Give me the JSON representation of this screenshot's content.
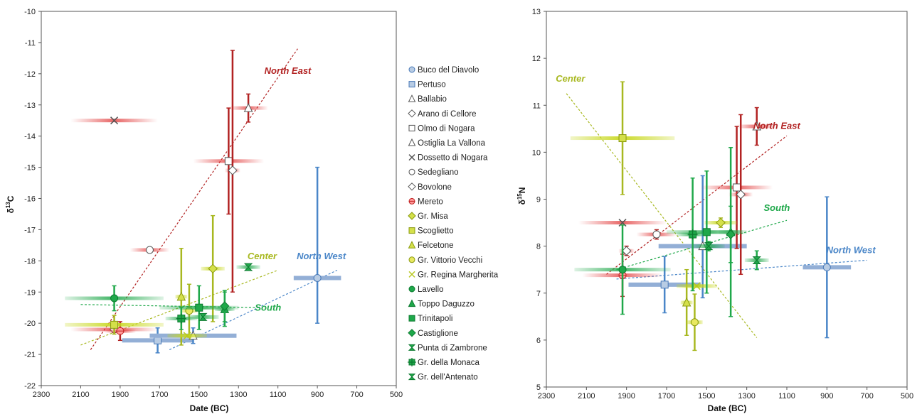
{
  "colors": {
    "north_east": "#b22222",
    "center": "#a8b820",
    "north_west": "#4a86c8",
    "south": "#1fa84a",
    "north_west_bar": "#93afd6",
    "frame": "#555555"
  },
  "legend": [
    {
      "label": "Buco del Diavolo",
      "symbol": "circle",
      "fill": "#b8cce4",
      "stroke": "#4a7ab8"
    },
    {
      "label": "Pertuso",
      "symbol": "square",
      "fill": "#b8cce4",
      "stroke": "#4a7ab8"
    },
    {
      "label": "Ballabio",
      "symbol": "triangle",
      "fill": "#ffffff",
      "stroke": "#555555"
    },
    {
      "label": "Arano di Cellore",
      "symbol": "diamond",
      "fill": "#ffffff",
      "stroke": "#555555"
    },
    {
      "label": "Olmo di Nogara",
      "symbol": "square",
      "fill": "#ffffff",
      "stroke": "#555555"
    },
    {
      "label": "Ostiglia La Vallona",
      "symbol": "triangle",
      "fill": "#ffffff",
      "stroke": "#555555"
    },
    {
      "label": "Dossetto di Nogara",
      "symbol": "x",
      "fill": "none",
      "stroke": "#555555"
    },
    {
      "label": "Sedegliano",
      "symbol": "circle",
      "fill": "#ffffff",
      "stroke": "#555555"
    },
    {
      "label": "Bovolone",
      "symbol": "diamond",
      "fill": "#ffffff",
      "stroke": "#555555"
    },
    {
      "label": "Mereto",
      "symbol": "circle-line",
      "fill": "#ff9999",
      "stroke": "#c02020"
    },
    {
      "label": "Gr. Misa",
      "symbol": "diamond",
      "fill": "#d4e04a",
      "stroke": "#8a9a10"
    },
    {
      "label": "Scoglietto",
      "symbol": "square",
      "fill": "#d4e04a",
      "stroke": "#8a9a10"
    },
    {
      "label": "Felcetone",
      "symbol": "triangle",
      "fill": "#d4e04a",
      "stroke": "#8a9a10"
    },
    {
      "label": "Gr. Vittorio Vecchi",
      "symbol": "circle",
      "fill": "#e8e860",
      "stroke": "#8a9a10"
    },
    {
      "label": "Gr. Regina Margherita",
      "symbol": "x",
      "fill": "none",
      "stroke": "#b8c820"
    },
    {
      "label": "Lavello",
      "symbol": "circle",
      "fill": "#1fa84a",
      "stroke": "#0d7a30"
    },
    {
      "label": "Toppo Daguzzo",
      "symbol": "triangle",
      "fill": "#1fa84a",
      "stroke": "#0d7a30"
    },
    {
      "label": "Trinitapoli",
      "symbol": "square",
      "fill": "#1fa84a",
      "stroke": "#0d7a30"
    },
    {
      "label": "Castiglione",
      "symbol": "diamond",
      "fill": "#1fa84a",
      "stroke": "#0d7a30"
    },
    {
      "label": "Punta di Zambrone",
      "symbol": "bowtie",
      "fill": "#1fa84a",
      "stroke": "#0d7a30"
    },
    {
      "label": "Gr. della Monaca",
      "symbol": "square-cross",
      "fill": "#1fa84a",
      "stroke": "#0d7a30"
    },
    {
      "label": "Gr. dell'Antenato",
      "symbol": "bowtie",
      "fill": "#1fa84a",
      "stroke": "#0d7a30"
    }
  ],
  "chart_data": [
    {
      "type": "scatter",
      "xlabel": "Date (BC)",
      "ylabel": "δ13C",
      "ylabel_main": "δ",
      "ylabel_sup": "13",
      "ylabel_tail": "C",
      "xlim": [
        2300,
        500
      ],
      "ylim": [
        -22,
        -10
      ],
      "x_reversed": true,
      "xticks": [
        "2300",
        "2100",
        "1900",
        "1700",
        "1500",
        "1300",
        "1100",
        "900",
        "700",
        "500"
      ],
      "yticks": [
        "-10",
        "-11",
        "-12",
        "-13",
        "-14",
        "-15",
        "-16",
        "-17",
        "-18",
        "-19",
        "-20",
        "-21",
        "-22"
      ],
      "regions": [
        {
          "name": "North East",
          "color_key": "north_east",
          "line": [
            [
              2050,
              -20.85
            ],
            [
              1000,
              -11.2
            ]
          ],
          "label_at": [
            1050,
            -12.0
          ]
        },
        {
          "name": "Center",
          "color_key": "center",
          "line": [
            [
              2100,
              -20.7
            ],
            [
              1100,
              -18.3
            ]
          ],
          "label_at": [
            1180,
            -17.95
          ]
        },
        {
          "name": "North West",
          "color_key": "north_west",
          "line": [
            [
              1650,
              -20.85
            ],
            [
              800,
              -18.3
            ]
          ],
          "label_at": [
            880,
            -17.95
          ]
        },
        {
          "name": "South",
          "color_key": "south",
          "line": [
            [
              2100,
              -19.4
            ],
            [
              1200,
              -19.5
            ]
          ],
          "label_at": [
            1150,
            -19.6
          ]
        }
      ],
      "points": [
        {
          "site": "Buco del Diavolo",
          "x": 900,
          "y": -18.55,
          "xerr": 120,
          "yerr_low": 1.45,
          "yerr_high": 3.55,
          "color_key": "north_west"
        },
        {
          "site": "Pertuso",
          "x": 1710,
          "y": -20.55,
          "xerr": 180,
          "yerr": 0.4,
          "color_key": "north_west"
        },
        {
          "site": "Ballabio",
          "x": 1530,
          "y": -20.4,
          "xerr": 220,
          "yerr": 0.25,
          "color_key": "north_west"
        },
        {
          "site": "Dossetto di Nogara",
          "x": 1930,
          "y": -13.5,
          "xerr": 220,
          "yerr": 0,
          "color_key": "north_east"
        },
        {
          "site": "Olmo di Nogara",
          "x": 1350,
          "y": -14.8,
          "xerr": 180,
          "yerr": 1.7,
          "color_key": "north_east"
        },
        {
          "site": "Arano di Cellore",
          "x": 1330,
          "y": -15.1,
          "xerr": 40,
          "yerr_low": 3.9,
          "yerr_high": 3.85,
          "color_key": "north_east"
        },
        {
          "site": "Ostiglia La Vallona",
          "x": 1250,
          "y": -13.1,
          "xerr": 100,
          "yerr": 0.45,
          "color_key": "north_east"
        },
        {
          "site": "Sedegliano",
          "x": 1750,
          "y": -17.65,
          "xerr": 100,
          "yerr": 0,
          "color_key": "north_east"
        },
        {
          "site": "Bovolone",
          "x": 1930,
          "y": -20.2,
          "xerr": 220,
          "yerr": 0.1,
          "color_key": "north_east"
        },
        {
          "site": "Mereto",
          "x": 1900,
          "y": -20.25,
          "xerr": 80,
          "yerr": 0.3,
          "color_key": "north_east"
        },
        {
          "site": "Gr. Misa",
          "x": 1430,
          "y": -18.25,
          "xerr": 60,
          "yerr": 1.7,
          "color_key": "center"
        },
        {
          "site": "Scoglietto",
          "x": 1930,
          "y": -20.05,
          "xerr": 250,
          "yerr": 0.3,
          "color_key": "center"
        },
        {
          "site": "Felcetone",
          "x": 1590,
          "y": -19.15,
          "xerr": 30,
          "yerr": 1.55,
          "color_key": "center"
        },
        {
          "site": "Gr. Vittorio Vecchi",
          "x": 1550,
          "y": -19.6,
          "xerr": 40,
          "yerr": 0.85,
          "color_key": "center"
        },
        {
          "site": "Gr. Regina Margherita",
          "x": 1560,
          "y": -20.4,
          "xerr": 100,
          "yerr": 0,
          "color_key": "center"
        },
        {
          "site": "Lavello",
          "x": 1930,
          "y": -19.2,
          "xerr": 250,
          "yerr": 0.4,
          "color_key": "south"
        },
        {
          "site": "Toppo Daguzzo",
          "x": 1370,
          "y": -19.55,
          "xerr": 50,
          "yerr": 0.55,
          "color_key": "south"
        },
        {
          "site": "Trinitapoli",
          "x": 1500,
          "y": -19.5,
          "xerr": 200,
          "yerr": 0.7,
          "color_key": "south"
        },
        {
          "site": "Castiglione",
          "x": 1370,
          "y": -19.45,
          "xerr": 0,
          "yerr": 0.5,
          "color_key": "south"
        },
        {
          "site": "Punta di Zambrone",
          "x": 1250,
          "y": -18.2,
          "xerr": 60,
          "yerr": 0,
          "color_key": "south"
        },
        {
          "site": "Gr. della Monaca",
          "x": 1590,
          "y": -19.85,
          "xerr": 80,
          "yerr": 0.35,
          "color_key": "south"
        },
        {
          "site": "Gr. dell'Antenato",
          "x": 1480,
          "y": -19.8,
          "xerr": 80,
          "yerr": 0.1,
          "color_key": "south"
        }
      ]
    },
    {
      "type": "scatter",
      "xlabel": "Date (BC)",
      "ylabel": "δ15N",
      "ylabel_main": "δ",
      "ylabel_sup": "15",
      "ylabel_tail": "N",
      "xlim": [
        2300,
        500
      ],
      "ylim": [
        5,
        13
      ],
      "x_reversed": true,
      "xticks": [
        "2300",
        "2100",
        "1900",
        "1700",
        "1500",
        "1300",
        "1100",
        "900",
        "700",
        "500"
      ],
      "yticks": [
        "5",
        "6",
        "7",
        "8",
        "9",
        "10",
        "11",
        "12",
        "13"
      ],
      "regions": [
        {
          "name": "North East",
          "color_key": "north_east",
          "line": [
            [
              2000,
              7.4
            ],
            [
              1100,
              10.35
            ]
          ],
          "label_at": [
            1150,
            10.5
          ]
        },
        {
          "name": "Center",
          "color_key": "center",
          "line": [
            [
              2200,
              11.25
            ],
            [
              1250,
              6.05
            ]
          ],
          "label_at": [
            2180,
            11.5
          ]
        },
        {
          "name": "North West",
          "color_key": "north_west",
          "line": [
            [
              1950,
              7.3
            ],
            [
              700,
              7.7
            ]
          ],
          "label_at": [
            780,
            7.85
          ]
        },
        {
          "name": "South",
          "color_key": "south",
          "line": [
            [
              1950,
              7.5
            ],
            [
              1100,
              8.55
            ]
          ],
          "label_at": [
            1150,
            8.75
          ]
        }
      ],
      "points": [
        {
          "site": "Buco del Diavolo",
          "x": 900,
          "y": 7.55,
          "xerr": 120,
          "yerr": 1.5,
          "color_key": "north_west"
        },
        {
          "site": "Pertuso",
          "x": 1710,
          "y": 7.18,
          "xerr": 180,
          "yerr": 0.6,
          "color_key": "north_west"
        },
        {
          "site": "Ballabio",
          "x": 1520,
          "y": 8.0,
          "xerr": 220,
          "yerr_low": 1.1,
          "yerr_high": 1.5,
          "color_key": "north_west"
        },
        {
          "site": "Dossetto di Nogara",
          "x": 1920,
          "y": 8.5,
          "xerr": 220,
          "yerr": 0,
          "color_key": "north_east"
        },
        {
          "site": "Olmo di Nogara",
          "x": 1350,
          "y": 9.25,
          "xerr": 180,
          "yerr": 1.3,
          "color_key": "north_east"
        },
        {
          "site": "Arano di Cellore",
          "x": 1330,
          "y": 9.1,
          "xerr": 60,
          "yerr": 1.7,
          "color_key": "north_east"
        },
        {
          "site": "Ostiglia La Vallona",
          "x": 1250,
          "y": 10.55,
          "xerr": 100,
          "yerr": 0.4,
          "color_key": "north_east"
        },
        {
          "site": "Sedegliano",
          "x": 1750,
          "y": 8.25,
          "xerr": 100,
          "yerr": 0.1,
          "color_key": "north_east"
        },
        {
          "site": "Bovolone",
          "x": 1900,
          "y": 7.9,
          "xerr": 40,
          "yerr": 0.1,
          "color_key": "north_east"
        },
        {
          "site": "Mereto",
          "x": 1920,
          "y": 7.38,
          "xerr": 200,
          "yerr": 0.45,
          "color_key": "north_east"
        },
        {
          "site": "Gr. Misa",
          "x": 1430,
          "y": 8.5,
          "xerr": 80,
          "yerr": 0.1,
          "color_key": "center"
        },
        {
          "site": "Scoglietto",
          "x": 1920,
          "y": 10.3,
          "xerr": 260,
          "yerr": 1.2,
          "color_key": "center"
        },
        {
          "site": "Felcetone",
          "x": 1600,
          "y": 6.8,
          "xerr": 30,
          "yerr": 0.7,
          "color_key": "center"
        },
        {
          "site": "Gr. Vittorio Vecchi",
          "x": 1560,
          "y": 6.38,
          "xerr": 40,
          "yerr": 0.6,
          "color_key": "center"
        },
        {
          "site": "Gr. Regina Margherita",
          "x": 1550,
          "y": 7.15,
          "xerr": 100,
          "yerr": 0,
          "color_key": "center"
        },
        {
          "site": "Lavello",
          "x": 1920,
          "y": 7.5,
          "xerr": 240,
          "yerr": 0.95,
          "color_key": "south"
        },
        {
          "site": "Toppo Daguzzo",
          "x": 1380,
          "y": 8.3,
          "xerr": 60,
          "yerr": 1.8,
          "color_key": "south"
        },
        {
          "site": "Trinitapoli",
          "x": 1500,
          "y": 8.3,
          "xerr": 200,
          "yerr": 1.3,
          "color_key": "south"
        },
        {
          "site": "Castiglione",
          "x": 1380,
          "y": 8.25,
          "xerr": 0,
          "yerr": 0.6,
          "color_key": "south"
        },
        {
          "site": "Punta di Zambrone",
          "x": 1250,
          "y": 7.7,
          "xerr": 60,
          "yerr": 0.2,
          "color_key": "south"
        },
        {
          "site": "Gr. della Monaca",
          "x": 1570,
          "y": 8.25,
          "xerr": 80,
          "yerr": 1.2,
          "color_key": "south"
        },
        {
          "site": "Gr. dell'Antenato",
          "x": 1490,
          "y": 8.0,
          "xerr": 80,
          "yerr": 0.1,
          "color_key": "south"
        }
      ]
    }
  ]
}
